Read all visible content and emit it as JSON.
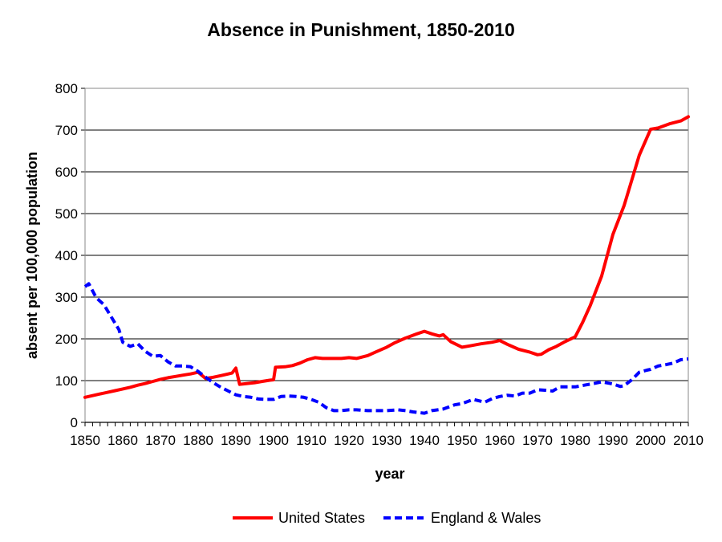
{
  "chart_data": {
    "type": "line",
    "title": "Absence in Punishment, 1850-2010",
    "xlabel": "year",
    "ylabel": "absent per 100,000 population",
    "xlim": [
      1850,
      2010
    ],
    "ylim": [
      0,
      800
    ],
    "x_ticks": [
      1850,
      1860,
      1870,
      1880,
      1890,
      1900,
      1910,
      1920,
      1930,
      1940,
      1950,
      1960,
      1970,
      1980,
      1990,
      2000,
      2010
    ],
    "y_ticks": [
      0,
      100,
      200,
      300,
      400,
      500,
      600,
      700,
      800
    ],
    "grid": "horizontal",
    "legend_position": "bottom",
    "series": [
      {
        "name": "United States",
        "color": "#ff0000",
        "style": "solid",
        "points": [
          [
            1850,
            60
          ],
          [
            1852,
            64
          ],
          [
            1854,
            68
          ],
          [
            1856,
            72
          ],
          [
            1858,
            76
          ],
          [
            1860,
            80
          ],
          [
            1862,
            84
          ],
          [
            1864,
            89
          ],
          [
            1866,
            93
          ],
          [
            1868,
            98
          ],
          [
            1870,
            103
          ],
          [
            1872,
            107
          ],
          [
            1874,
            110
          ],
          [
            1876,
            113
          ],
          [
            1878,
            116
          ],
          [
            1880,
            120
          ],
          [
            1882,
            105
          ],
          [
            1884,
            108
          ],
          [
            1886,
            112
          ],
          [
            1888,
            116
          ],
          [
            1889,
            118
          ],
          [
            1890,
            130
          ],
          [
            1891,
            91
          ],
          [
            1893,
            93
          ],
          [
            1895,
            95
          ],
          [
            1897,
            98
          ],
          [
            1899,
            101
          ],
          [
            1900,
            102
          ],
          [
            1900.5,
            132
          ],
          [
            1903,
            133
          ],
          [
            1905,
            136
          ],
          [
            1907,
            142
          ],
          [
            1909,
            150
          ],
          [
            1911,
            155
          ],
          [
            1913,
            153
          ],
          [
            1916,
            153
          ],
          [
            1918,
            153
          ],
          [
            1920,
            155
          ],
          [
            1922,
            153
          ],
          [
            1925,
            160
          ],
          [
            1927,
            168
          ],
          [
            1930,
            180
          ],
          [
            1932,
            190
          ],
          [
            1935,
            202
          ],
          [
            1938,
            212
          ],
          [
            1940,
            218
          ],
          [
            1942,
            212
          ],
          [
            1944,
            207
          ],
          [
            1945,
            210
          ],
          [
            1947,
            193
          ],
          [
            1950,
            180
          ],
          [
            1952,
            183
          ],
          [
            1955,
            188
          ],
          [
            1958,
            192
          ],
          [
            1960,
            196
          ],
          [
            1962,
            187
          ],
          [
            1965,
            175
          ],
          [
            1968,
            168
          ],
          [
            1970,
            162
          ],
          [
            1971,
            163
          ],
          [
            1973,
            174
          ],
          [
            1975,
            182
          ],
          [
            1977,
            192
          ],
          [
            1980,
            205
          ],
          [
            1982,
            240
          ],
          [
            1984,
            280
          ],
          [
            1987,
            350
          ],
          [
            1990,
            450
          ],
          [
            1993,
            520
          ],
          [
            1995,
            580
          ],
          [
            1997,
            640
          ],
          [
            2000,
            702
          ],
          [
            2002,
            705
          ],
          [
            2005,
            715
          ],
          [
            2008,
            722
          ],
          [
            2010,
            732
          ]
        ]
      },
      {
        "name": "England & Wales",
        "color": "#0000ff",
        "style": "dashed",
        "points": [
          [
            1850,
            325
          ],
          [
            1851,
            332
          ],
          [
            1853,
            298
          ],
          [
            1855,
            282
          ],
          [
            1857,
            252
          ],
          [
            1859,
            222
          ],
          [
            1860,
            192
          ],
          [
            1862,
            182
          ],
          [
            1864,
            188
          ],
          [
            1866,
            170
          ],
          [
            1868,
            158
          ],
          [
            1870,
            160
          ],
          [
            1872,
            145
          ],
          [
            1874,
            135
          ],
          [
            1876,
            135
          ],
          [
            1878,
            133
          ],
          [
            1880,
            122
          ],
          [
            1882,
            108
          ],
          [
            1884,
            95
          ],
          [
            1886,
            84
          ],
          [
            1888,
            75
          ],
          [
            1890,
            66
          ],
          [
            1892,
            62
          ],
          [
            1894,
            60
          ],
          [
            1896,
            56
          ],
          [
            1898,
            55
          ],
          [
            1900,
            55
          ],
          [
            1902,
            62
          ],
          [
            1904,
            63
          ],
          [
            1906,
            62
          ],
          [
            1908,
            60
          ],
          [
            1910,
            55
          ],
          [
            1912,
            48
          ],
          [
            1914,
            35
          ],
          [
            1916,
            28
          ],
          [
            1918,
            28
          ],
          [
            1920,
            30
          ],
          [
            1922,
            30
          ],
          [
            1925,
            28
          ],
          [
            1928,
            28
          ],
          [
            1930,
            28
          ],
          [
            1933,
            30
          ],
          [
            1935,
            28
          ],
          [
            1937,
            25
          ],
          [
            1940,
            22
          ],
          [
            1942,
            28
          ],
          [
            1945,
            32
          ],
          [
            1948,
            42
          ],
          [
            1950,
            45
          ],
          [
            1953,
            55
          ],
          [
            1956,
            48
          ],
          [
            1958,
            57
          ],
          [
            1960,
            62
          ],
          [
            1962,
            65
          ],
          [
            1964,
            63
          ],
          [
            1966,
            70
          ],
          [
            1968,
            70
          ],
          [
            1970,
            78
          ],
          [
            1972,
            77
          ],
          [
            1974,
            75
          ],
          [
            1976,
            85
          ],
          [
            1978,
            85
          ],
          [
            1980,
            85
          ],
          [
            1983,
            90
          ],
          [
            1985,
            93
          ],
          [
            1987,
            97
          ],
          [
            1990,
            92
          ],
          [
            1992,
            86
          ],
          [
            1993,
            88
          ],
          [
            1995,
            102
          ],
          [
            1997,
            120
          ],
          [
            1999,
            125
          ],
          [
            2000,
            127
          ],
          [
            2002,
            135
          ],
          [
            2004,
            138
          ],
          [
            2006,
            142
          ],
          [
            2008,
            150
          ],
          [
            2010,
            152
          ]
        ]
      }
    ]
  }
}
